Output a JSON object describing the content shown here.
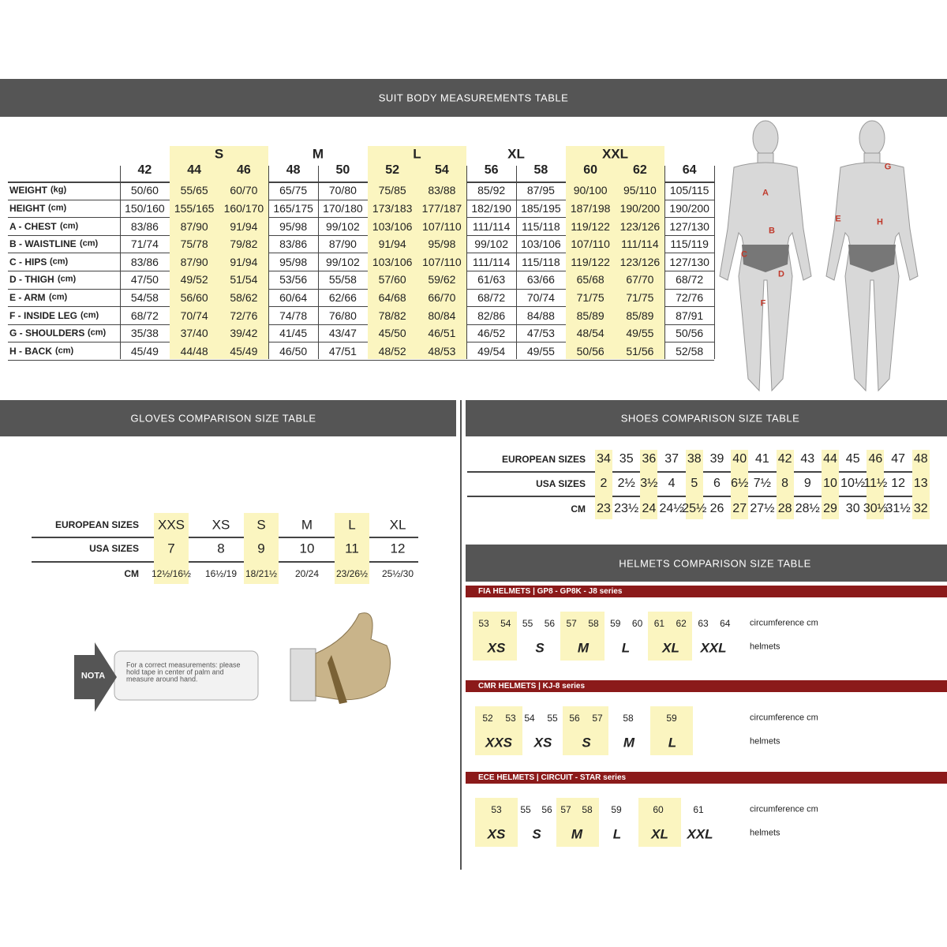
{
  "suit": {
    "title": "SUIT BODY MEASUREMENTS TABLE",
    "groups": [
      "S",
      "M",
      "L",
      "XL",
      "XXL"
    ],
    "sizes": [
      "42",
      "44",
      "46",
      "48",
      "50",
      "52",
      "54",
      "56",
      "58",
      "60",
      "62",
      "64"
    ],
    "rows": [
      {
        "label": "WEIGHT",
        "unit": "(kg)",
        "values": [
          "50/60",
          "55/65",
          "60/70",
          "65/75",
          "70/80",
          "75/85",
          "83/88",
          "85/92",
          "87/95",
          "90/100",
          "95/110",
          "105/115"
        ]
      },
      {
        "label": "HEIGHT",
        "unit": "(cm)",
        "values": [
          "150/160",
          "155/165",
          "160/170",
          "165/175",
          "170/180",
          "173/183",
          "177/187",
          "182/190",
          "185/195",
          "187/198",
          "190/200",
          "190/200"
        ]
      },
      {
        "label": "A - CHEST",
        "unit": "(cm)",
        "values": [
          "83/86",
          "87/90",
          "91/94",
          "95/98",
          "99/102",
          "103/106",
          "107/110",
          "111/114",
          "115/118",
          "119/122",
          "123/126",
          "127/130"
        ]
      },
      {
        "label": "B - WAISTLINE",
        "unit": "(cm)",
        "values": [
          "71/74",
          "75/78",
          "79/82",
          "83/86",
          "87/90",
          "91/94",
          "95/98",
          "99/102",
          "103/106",
          "107/110",
          "111/114",
          "115/119"
        ]
      },
      {
        "label": "C - HIPS",
        "unit": "(cm)",
        "values": [
          "83/86",
          "87/90",
          "91/94",
          "95/98",
          "99/102",
          "103/106",
          "107/110",
          "111/114",
          "115/118",
          "119/122",
          "123/126",
          "127/130"
        ]
      },
      {
        "label": "D - THIGH",
        "unit": "(cm)",
        "values": [
          "47/50",
          "49/52",
          "51/54",
          "53/56",
          "55/58",
          "57/60",
          "59/62",
          "61/63",
          "63/66",
          "65/68",
          "67/70",
          "68/72"
        ]
      },
      {
        "label": "E - ARM",
        "unit": "(cm)",
        "values": [
          "54/58",
          "56/60",
          "58/62",
          "60/64",
          "62/66",
          "64/68",
          "66/70",
          "68/72",
          "70/74",
          "71/75",
          "71/75",
          "72/76"
        ]
      },
      {
        "label": "F - INSIDE LEG",
        "unit": "(cm)",
        "values": [
          "68/72",
          "70/74",
          "72/76",
          "74/78",
          "76/80",
          "78/82",
          "80/84",
          "82/86",
          "84/88",
          "85/89",
          "85/89",
          "87/91"
        ]
      },
      {
        "label": "G - SHOULDERS",
        "unit": "(cm)",
        "values": [
          "35/38",
          "37/40",
          "39/42",
          "41/45",
          "43/47",
          "45/50",
          "46/51",
          "46/52",
          "47/53",
          "48/54",
          "49/55",
          "50/56"
        ]
      },
      {
        "label": "H - BACK",
        "unit": "(cm)",
        "values": [
          "45/49",
          "44/48",
          "45/49",
          "46/50",
          "47/51",
          "48/52",
          "48/53",
          "49/54",
          "49/55",
          "50/56",
          "51/56",
          "52/58"
        ]
      }
    ],
    "figure_labels": [
      "A",
      "B",
      "C",
      "D",
      "F",
      "G",
      "E",
      "H"
    ]
  },
  "gloves": {
    "title": "GLOVES COMPARISON SIZE TABLE",
    "rows": [
      {
        "label": "EUROPEAN SIZES",
        "values": [
          "XXS",
          "XS",
          "S",
          "M",
          "L",
          "XL"
        ]
      },
      {
        "label": "USA SIZES",
        "values": [
          "7",
          "8",
          "9",
          "10",
          "11",
          "12"
        ]
      },
      {
        "label": "CM",
        "values": [
          "12½/16½",
          "16½/19",
          "18/21½",
          "20/24",
          "23/26½",
          "25½/30"
        ]
      }
    ],
    "note": {
      "tag": "NOTA",
      "text": "For a correct measurements: please hold tape in center of palm and measure around hand."
    }
  },
  "shoes": {
    "title": "SHOES COMPARISON SIZE TABLE",
    "rows": [
      {
        "label": "EUROPEAN SIZES",
        "values": [
          "34",
          "35",
          "36",
          "37",
          "38",
          "39",
          "40",
          "41",
          "42",
          "43",
          "44",
          "45",
          "46",
          "47",
          "48"
        ]
      },
      {
        "label": "USA SIZES",
        "values": [
          "2",
          "2½",
          "3½",
          "4",
          "5",
          "6",
          "6½",
          "7½",
          "8",
          "9",
          "10",
          "10½",
          "11½",
          "12",
          "13"
        ]
      },
      {
        "label": "CM",
        "values": [
          "23",
          "23½",
          "24",
          "24½",
          "25½",
          "26",
          "27",
          "27½",
          "28",
          "28½",
          "29",
          "30",
          "30½",
          "31½",
          "32"
        ]
      }
    ]
  },
  "helmets": {
    "title": "HELMETS COMPARISON SIZE TABLE",
    "sections": [
      {
        "title": "FIA HELMETS | GP8 - GP8K - J8 series",
        "circumference": [
          "53",
          "54",
          "55",
          "56",
          "57",
          "58",
          "59",
          "60",
          "61",
          "62",
          "63",
          "64"
        ],
        "sizes": [
          "XS",
          "S",
          "M",
          "L",
          "XL",
          "XXL"
        ],
        "circumference_label": "circumference cm",
        "sizes_label": "helmets"
      },
      {
        "title": "CMR HELMETS | KJ-8 series",
        "circumference": [
          "52",
          "53",
          "54",
          "55",
          "56",
          "57",
          "58",
          "59"
        ],
        "sizes": [
          "XXS",
          "XS",
          "S",
          "M",
          "L"
        ],
        "circumference_label": "circumference cm",
        "sizes_label": "helmets"
      },
      {
        "title": "ECE HELMETS | CIRCUIT - STAR series",
        "circumference": [
          "53",
          "55",
          "56",
          "57",
          "58",
          "59",
          "60",
          "61"
        ],
        "sizes": [
          "XS",
          "S",
          "M",
          "L",
          "XL",
          "XXL"
        ],
        "circumference_label": "circumference cm",
        "sizes_label": "helmets"
      }
    ]
  }
}
